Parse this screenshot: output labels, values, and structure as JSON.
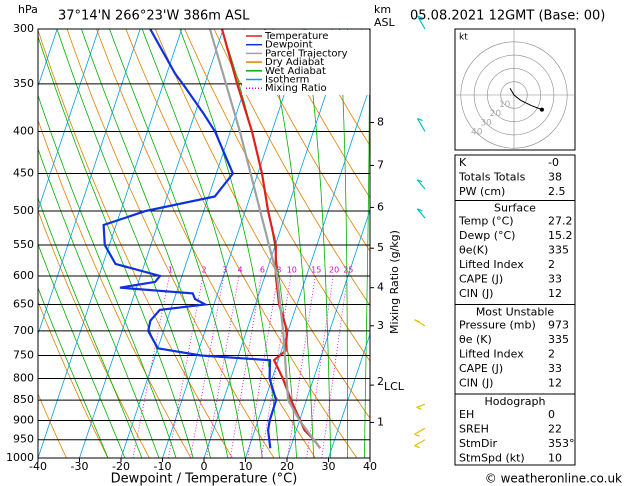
{
  "header": {
    "units_left": "hPa",
    "location": "37°14'N  266°23'W  386m  ASL",
    "units_right_1": "km",
    "units_right_2": "ASL",
    "date": "05.08.2021  12GMT  (Base: 00)"
  },
  "chart_data": {
    "type": "skewt",
    "xlabel": "Dewpoint / Temperature (°C)",
    "y2label": "Mixing Ratio (g/kg)",
    "xlim": [
      -40,
      40
    ],
    "xticks": [
      -40,
      -30,
      -20,
      -10,
      0,
      10,
      20,
      30,
      40
    ],
    "ylim": [
      1000,
      300
    ],
    "yticks": [
      300,
      350,
      400,
      450,
      500,
      550,
      600,
      650,
      700,
      750,
      800,
      850,
      900,
      950,
      1000
    ],
    "log_y": true,
    "series": [
      {
        "name": "Temperature",
        "color": "#e0201a",
        "pressure": [
          973,
          950,
          925,
          850,
          800,
          760,
          740,
          700,
          650,
          600,
          550,
          500,
          450,
          400,
          350,
          300
        ],
        "values": [
          27.2,
          25,
          22,
          16.3,
          12.6,
          9,
          11,
          9.8,
          5.7,
          2.6,
          0.1,
          -4.5,
          -9,
          -14.8,
          -22.2,
          -30.3
        ]
      },
      {
        "name": "Dewpoint",
        "color": "#1030e0",
        "pressure": [
          973,
          925,
          900,
          850,
          800,
          760,
          750,
          735,
          700,
          680,
          660,
          650,
          640,
          630,
          620,
          610,
          600,
          580,
          550,
          520,
          500,
          480,
          450,
          400,
          380,
          350,
          340,
          300
        ],
        "values": [
          15.2,
          13.2,
          12.8,
          12.7,
          9.4,
          8,
          -9,
          -20,
          -23.7,
          -24,
          -22.6,
          -12.1,
          -15,
          -16,
          -34,
          -26,
          -25.3,
          -37,
          -41.1,
          -43,
          -34,
          -18.5,
          -16,
          -23.7,
          -28,
          -35.3,
          -38,
          -47.6
        ]
      },
      {
        "name": "Parcel Trajectory",
        "color": "#a0a0a0",
        "pressure": [
          973,
          900,
          850,
          700,
          600,
          500,
          400,
          300
        ],
        "values": [
          27.2,
          20,
          15.6,
          8.8,
          2.9,
          -6.4,
          -17.7,
          -33.2
        ]
      }
    ],
    "background_lines": [
      {
        "name": "Dry Adiabat",
        "color": "#e08000"
      },
      {
        "name": "Wet Adiabat",
        "color": "#00b000"
      },
      {
        "name": "Isotherm",
        "color": "#00a0e0"
      },
      {
        "name": "Mixing Ratio",
        "color": "#e000e0"
      }
    ],
    "mixing_ratios": [
      1,
      2,
      3,
      4,
      6,
      8,
      10,
      15,
      20,
      25
    ],
    "km_ticks": [
      {
        "km": 1,
        "p": 905
      },
      {
        "km": 3,
        "p": 690
      },
      {
        "km": 4,
        "p": 620
      },
      {
        "km": 5,
        "p": 555
      },
      {
        "km": 6,
        "p": 495
      },
      {
        "km": 7,
        "p": 440
      },
      {
        "km": 8,
        "p": 390
      }
    ],
    "lcl": {
      "label": "LCL",
      "km": 2,
      "p": 815
    },
    "winds": {
      "pressure": [
        300,
        400,
        470,
        510,
        690,
        860,
        920,
        950
      ],
      "direction": [
        330,
        330,
        320,
        320,
        300,
        250,
        240,
        240
      ],
      "speed": [
        15,
        15,
        10,
        10,
        10,
        5,
        10,
        10
      ],
      "colors": [
        "#00c0c0",
        "#00c0c0",
        "#00c0c0",
        "#00c0c0",
        "#e0c000",
        "#e0c000",
        "#e0c000",
        "#e0c000"
      ]
    }
  },
  "hodograph": {
    "unit": "kt",
    "rings": [
      10,
      20,
      30,
      40
    ],
    "u": [
      -3,
      0,
      5,
      13,
      21
    ],
    "v": [
      5,
      0,
      -4,
      -8,
      -11
    ]
  },
  "indices": [
    [
      "K",
      "-0"
    ],
    [
      "Totals Totals",
      "38"
    ],
    [
      "PW (cm)",
      "2.5"
    ]
  ],
  "sections": [
    {
      "title": "Surface",
      "rows": [
        [
          "Temp (°C)",
          "27.2"
        ],
        [
          "Dewp (°C)",
          "15.2"
        ],
        [
          "θe(K)",
          "335"
        ],
        [
          "Lifted Index",
          "2"
        ],
        [
          "CAPE (J)",
          "33"
        ],
        [
          "CIN (J)",
          "12"
        ]
      ]
    },
    {
      "title": "Most Unstable",
      "rows": [
        [
          "Pressure (mb)",
          "973"
        ],
        [
          "θe (K)",
          "335"
        ],
        [
          "Lifted Index",
          "2"
        ],
        [
          "CAPE (J)",
          "33"
        ],
        [
          "CIN (J)",
          "12"
        ]
      ]
    },
    {
      "title": "Hodograph",
      "rows": [
        [
          "EH",
          "0"
        ],
        [
          "SREH",
          "22"
        ],
        [
          "StmDir",
          "353°"
        ],
        [
          "StmSpd (kt)",
          "10"
        ]
      ]
    }
  ],
  "footer": "© weatheronline.co.uk"
}
